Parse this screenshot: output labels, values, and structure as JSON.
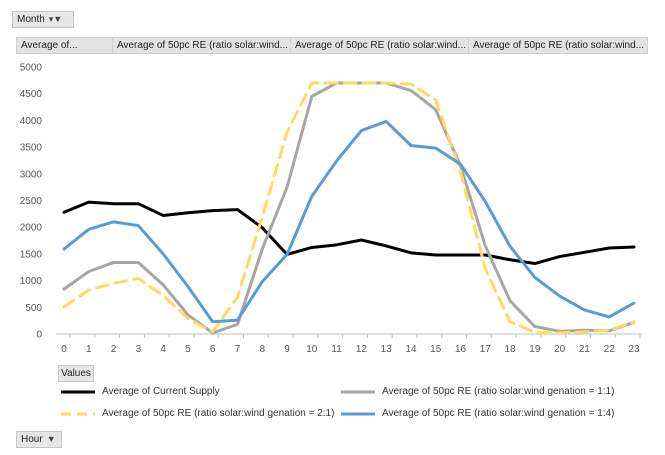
{
  "filter_button": {
    "label": "Month",
    "icon": "filter-icon"
  },
  "header_cells": [
    "Average of...",
    "Average of 50pc RE (ratio solar:wind...",
    "Average of 50pc RE (ratio solar:wind...",
    "Average of 50pc RE (ratio solar:wind..."
  ],
  "values_button": {
    "label": "Values"
  },
  "hour_button": {
    "label": "Hour",
    "icon": "dropdown-icon"
  },
  "chart_data": {
    "type": "line",
    "x": [
      0,
      1,
      2,
      3,
      4,
      5,
      6,
      7,
      8,
      9,
      10,
      11,
      12,
      13,
      14,
      15,
      16,
      17,
      18,
      19,
      20,
      21,
      22,
      23
    ],
    "ylim": [
      0,
      5000
    ],
    "yticks": [
      0,
      500,
      1000,
      1500,
      2000,
      2500,
      3000,
      3500,
      4000,
      4500,
      5000
    ],
    "grid": false,
    "legend_position": "bottom",
    "series": [
      {
        "name": "Average of Current Supply",
        "color": "#000000",
        "dash": "solid",
        "values": [
          2280,
          2470,
          2440,
          2440,
          2220,
          2270,
          2310,
          2330,
          1990,
          1490,
          1620,
          1670,
          1760,
          1650,
          1520,
          1480,
          1480,
          1480,
          1390,
          1320,
          1450,
          1530,
          1610,
          1630
        ]
      },
      {
        "name": "Average of 50pc RE (ratio solar:wind genation = 1:1)",
        "color": "#a6a6a6",
        "dash": "solid",
        "values": [
          840,
          1170,
          1340,
          1340,
          920,
          360,
          20,
          180,
          1590,
          2750,
          4450,
          4700,
          4700,
          4700,
          4560,
          4200,
          3150,
          1650,
          620,
          140,
          50,
          70,
          60,
          220
        ]
      },
      {
        "name": "Average of 50pc RE (ratio solar:wind genation = 2:1)",
        "color": "#ffd966",
        "dash": "dashed",
        "values": [
          510,
          820,
          950,
          1040,
          720,
          290,
          40,
          690,
          2190,
          3780,
          4700,
          4700,
          4700,
          4700,
          4680,
          4380,
          3040,
          1220,
          230,
          30,
          20,
          40,
          70,
          230
        ]
      },
      {
        "name": "Average of 50pc RE (ratio solar:wind genation = 1:4)",
        "color": "#5b9bd5",
        "dash": "solid",
        "values": [
          1590,
          1960,
          2100,
          2030,
          1500,
          890,
          230,
          260,
          980,
          1490,
          2580,
          3240,
          3810,
          3980,
          3530,
          3480,
          3180,
          2480,
          1640,
          1060,
          710,
          450,
          320,
          580
        ]
      }
    ]
  }
}
